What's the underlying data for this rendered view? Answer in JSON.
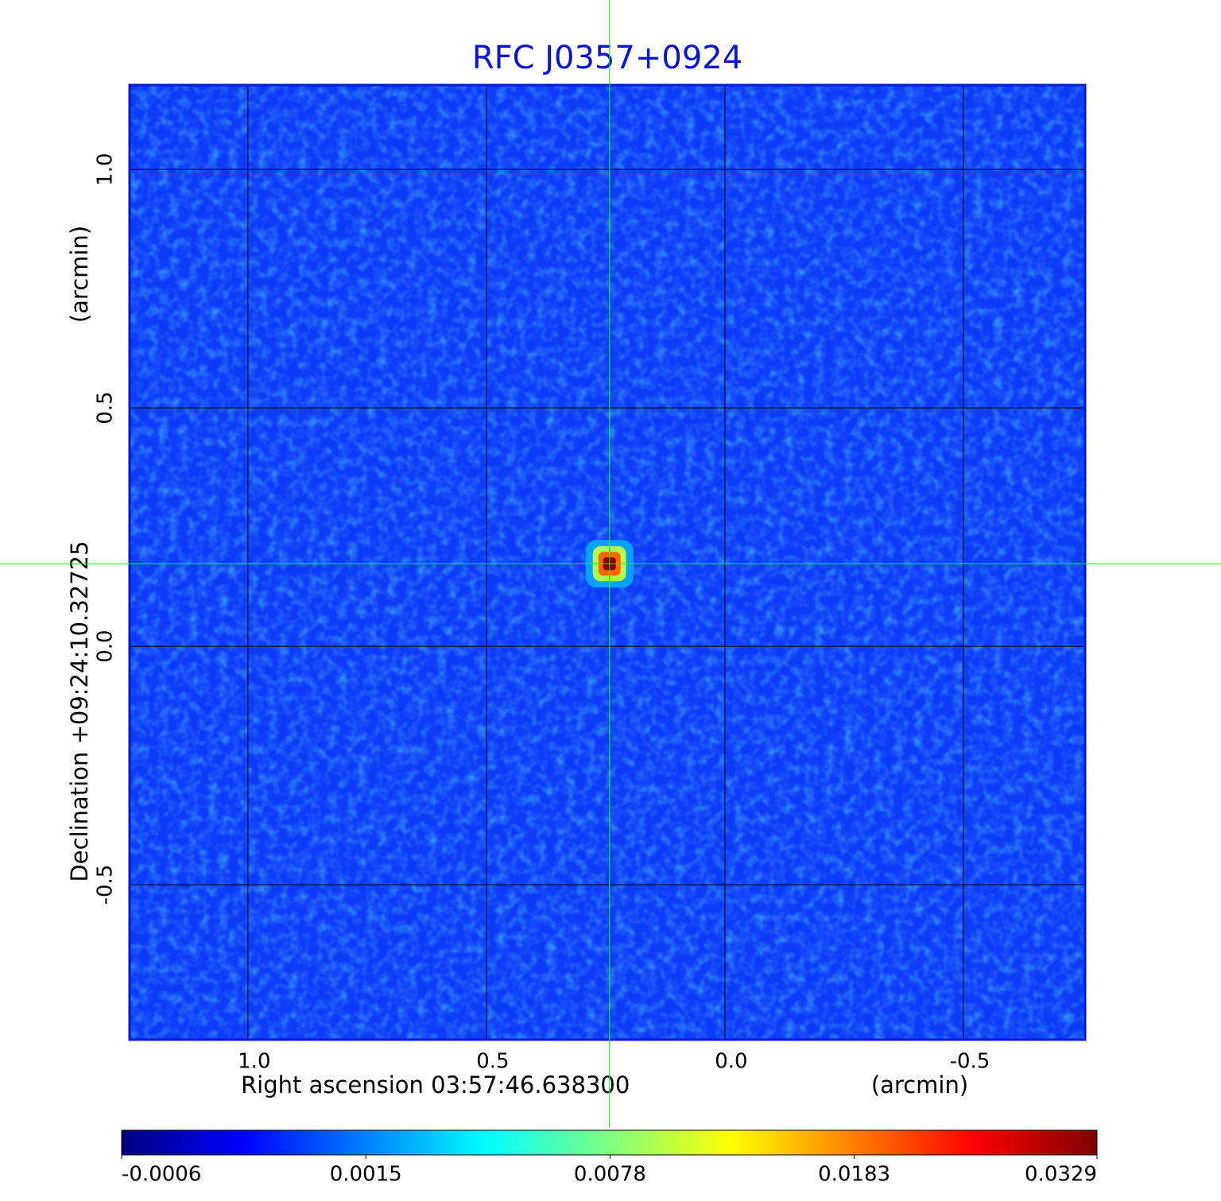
{
  "chart_data": {
    "type": "image",
    "title": "RFC J0357+0924",
    "x_label": "Right ascension  03:57:46.638300",
    "x_unit": "(arcmin)",
    "y_label": "Declination  +09:24:10.32725",
    "y_unit": "(arcmin)",
    "xlim": [
      1.248,
      -0.755
    ],
    "ylim": [
      -0.825,
      1.177
    ],
    "xticks": [
      {
        "value": 1,
        "label": "1.0"
      },
      0.5,
      {
        "value": 0,
        "label": "0.0"
      },
      -0.5
    ],
    "yticks": [
      -0.5,
      {
        "value": 0,
        "label": "0.0"
      },
      0.5,
      {
        "value": 1,
        "label": "1.0"
      }
    ],
    "grid": true,
    "colormap": "jet",
    "color_scale": "sqrt",
    "clim": [
      -0.0006,
      0.0329
    ],
    "colorbar_ticks": [
      -0.0006,
      0.0015,
      0.0078,
      0.0183,
      0.0329
    ],
    "source": {
      "x": 0.242,
      "y": 0.173,
      "peak": 0.0329
    },
    "crosshair_color": "#00ff00",
    "title_color": "#0a14d0"
  }
}
